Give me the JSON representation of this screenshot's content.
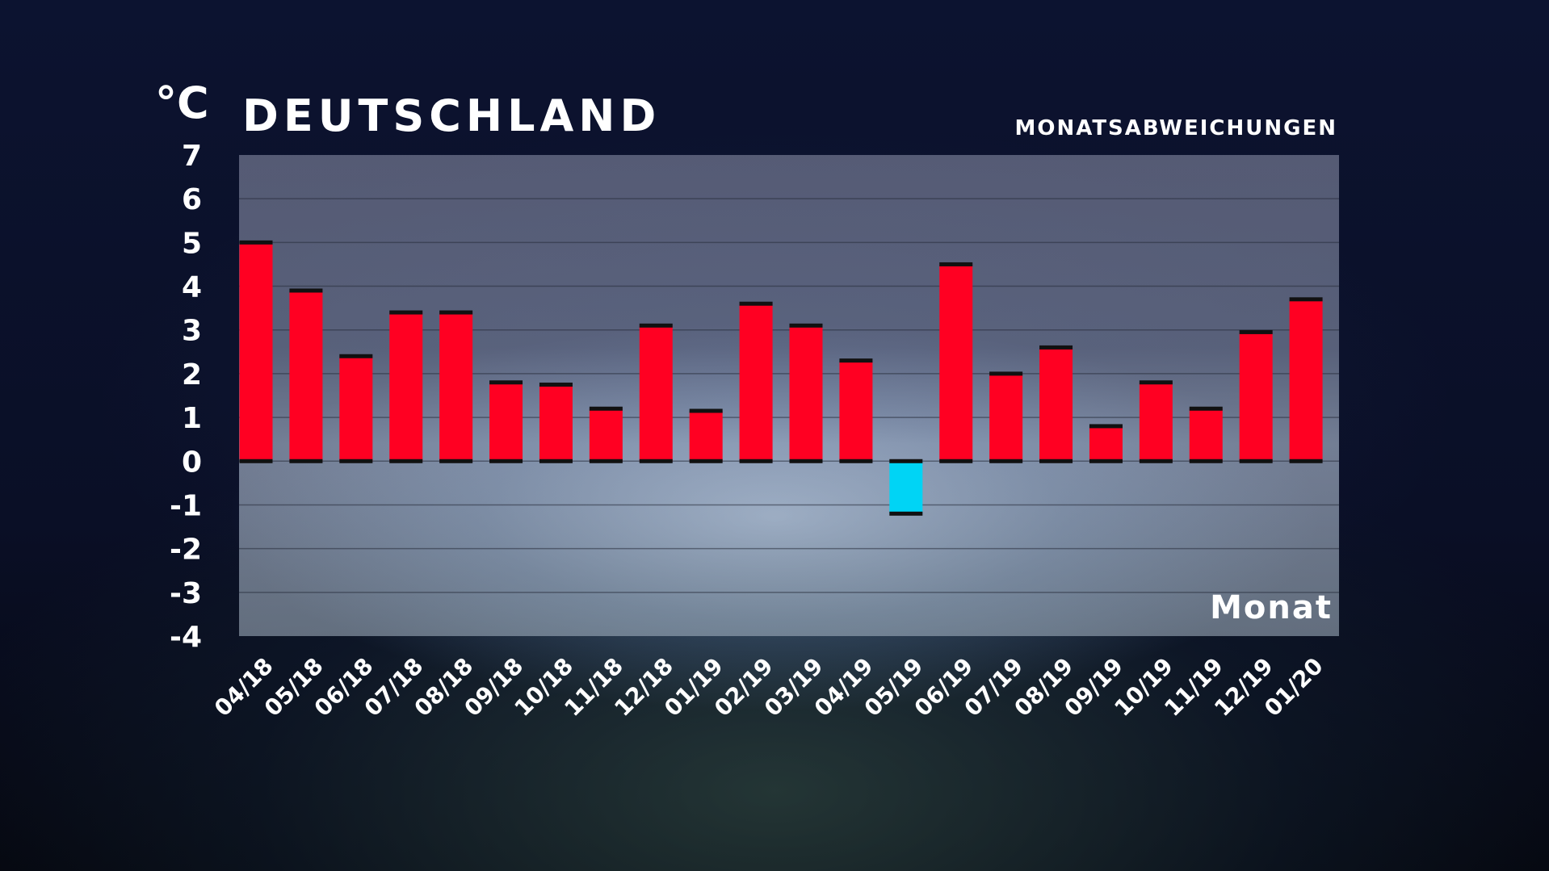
{
  "header": {
    "unit": "°C",
    "title": "DEUTSCHLAND",
    "subtitle": "MONATSABWEICHUNGEN"
  },
  "colors": {
    "positive": "#ff0022",
    "negative": "#00d4f5",
    "cap": "#111111"
  },
  "chart_data": {
    "type": "bar",
    "title": "DEUTSCHLAND",
    "subtitle": "MONATSABWEICHUNGEN",
    "ylabel": "°C",
    "xlabel": "Monat",
    "ylim": [
      -4,
      7
    ],
    "yticks": [
      7,
      6,
      5,
      4,
      3,
      2,
      1,
      0,
      -1,
      -2,
      -3,
      -4
    ],
    "grid": true,
    "categories": [
      "04/18",
      "05/18",
      "06/18",
      "07/18",
      "08/18",
      "09/18",
      "10/18",
      "11/18",
      "12/18",
      "01/19",
      "02/19",
      "03/19",
      "04/19",
      "05/19",
      "06/19",
      "07/19",
      "08/19",
      "09/19",
      "10/19",
      "11/19",
      "12/19",
      "01/20"
    ],
    "values": [
      5.0,
      3.9,
      2.4,
      3.4,
      3.4,
      1.8,
      1.75,
      1.2,
      3.1,
      1.15,
      3.6,
      3.1,
      2.3,
      -1.2,
      4.5,
      2.0,
      2.6,
      0.8,
      1.8,
      1.2,
      2.95,
      3.7
    ]
  }
}
